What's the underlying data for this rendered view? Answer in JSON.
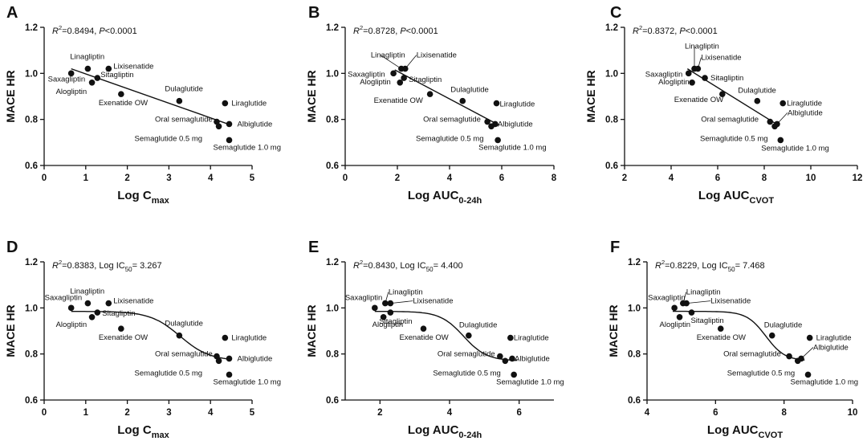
{
  "figure_title": "",
  "chart_data": [
    {
      "panel": "A",
      "type": "scatter",
      "fit": "linear",
      "stat_r2": "0.8494",
      "stat_tail": "P<0.0001",
      "xlabel_main": "Log C",
      "xlabel_sub": "max",
      "ylabel": "MACE HR",
      "xlim": [
        0,
        5
      ],
      "xticks": [
        0,
        1,
        2,
        3,
        4,
        5
      ],
      "ylim": [
        0.6,
        1.2
      ],
      "yticks": [
        0.6,
        0.8,
        1.0,
        1.2
      ],
      "fit_params": {
        "x0": 0.65,
        "y0": 1.02,
        "x1": 4.5,
        "y1": 0.775
      },
      "points": [
        {
          "name": "Linagliptin",
          "x": 1.05,
          "y": 1.02
        },
        {
          "name": "Lixisenatide",
          "x": 1.55,
          "y": 1.02
        },
        {
          "name": "Saxagliptin",
          "x": 0.65,
          "y": 1.0
        },
        {
          "name": "Sitagliptin",
          "x": 1.28,
          "y": 0.98
        },
        {
          "name": "Alogliptin",
          "x": 1.15,
          "y": 0.96
        },
        {
          "name": "Exenatide OW",
          "x": 1.85,
          "y": 0.91
        },
        {
          "name": "Dulaglutide",
          "x": 3.25,
          "y": 0.88
        },
        {
          "name": "Liraglutide",
          "x": 4.35,
          "y": 0.87
        },
        {
          "name": "Oral semaglutide",
          "x": 4.15,
          "y": 0.79
        },
        {
          "name": "Albiglutide",
          "x": 4.45,
          "y": 0.78
        },
        {
          "name": "Semaglutide 0.5 mg",
          "x": 4.2,
          "y": 0.77
        },
        {
          "name": "Semaglutide 1.0 mg",
          "x": 4.45,
          "y": 0.71
        }
      ]
    },
    {
      "panel": "B",
      "type": "scatter",
      "fit": "linear",
      "stat_r2": "0.8728",
      "stat_tail": "P<0.0001",
      "xlabel_main": "Log AUC",
      "xlabel_sub": "0-24h",
      "ylabel": "MACE HR",
      "xlim": [
        0,
        8
      ],
      "xticks": [
        0,
        2,
        4,
        6,
        8
      ],
      "ylim": [
        0.6,
        1.2
      ],
      "yticks": [
        0.6,
        0.8,
        1.0,
        1.2
      ],
      "fit_params": {
        "x0": 1.9,
        "y0": 1.015,
        "x1": 5.9,
        "y1": 0.775
      },
      "points": [
        {
          "name": "Linagliptin",
          "x": 2.15,
          "y": 1.02
        },
        {
          "name": "Lixisenatide",
          "x": 2.3,
          "y": 1.02
        },
        {
          "name": "Saxagliptin",
          "x": 1.85,
          "y": 1.0
        },
        {
          "name": "Sitagliptin",
          "x": 2.25,
          "y": 0.98
        },
        {
          "name": "Alogliptin",
          "x": 2.1,
          "y": 0.96
        },
        {
          "name": "Exenatide OW",
          "x": 3.25,
          "y": 0.91
        },
        {
          "name": "Dulaglutide",
          "x": 4.5,
          "y": 0.88
        },
        {
          "name": "Liraglutide",
          "x": 5.8,
          "y": 0.87
        },
        {
          "name": "Oral semaglutide",
          "x": 5.45,
          "y": 0.79
        },
        {
          "name": "Albiglutide",
          "x": 5.75,
          "y": 0.78
        },
        {
          "name": "Semaglutide 0.5 mg",
          "x": 5.6,
          "y": 0.77
        },
        {
          "name": "Semaglutide 1.0 mg",
          "x": 5.85,
          "y": 0.71
        }
      ]
    },
    {
      "panel": "C",
      "type": "scatter",
      "fit": "linear",
      "stat_r2": "0.8372",
      "stat_tail": "P<0.0001",
      "xlabel_main": "Log AUC",
      "xlabel_sub": "CVOT",
      "ylabel": "MACE HR",
      "xlim": [
        2,
        12
      ],
      "xticks": [
        2,
        4,
        6,
        8,
        10,
        12
      ],
      "ylim": [
        0.6,
        1.2
      ],
      "yticks": [
        0.6,
        0.8,
        1.0,
        1.2
      ],
      "fit_params": {
        "x0": 4.7,
        "y0": 1.02,
        "x1": 8.6,
        "y1": 0.775
      },
      "points": [
        {
          "name": "Linagliptin",
          "x": 5.0,
          "y": 1.02
        },
        {
          "name": "Lixisenatide",
          "x": 5.15,
          "y": 1.02
        },
        {
          "name": "Saxagliptin",
          "x": 4.75,
          "y": 1.0
        },
        {
          "name": "Sitagliptin",
          "x": 5.45,
          "y": 0.98
        },
        {
          "name": "Alogliptin",
          "x": 4.9,
          "y": 0.96
        },
        {
          "name": "Exenatide OW",
          "x": 6.2,
          "y": 0.91
        },
        {
          "name": "Dulaglutide",
          "x": 7.7,
          "y": 0.88
        },
        {
          "name": "Liraglutide",
          "x": 8.8,
          "y": 0.87
        },
        {
          "name": "Oral semaglutide",
          "x": 8.25,
          "y": 0.79
        },
        {
          "name": "Albiglutide",
          "x": 8.55,
          "y": 0.78
        },
        {
          "name": "Semaglutide 0.5 mg",
          "x": 8.45,
          "y": 0.77
        },
        {
          "name": "Semaglutide 1.0 mg",
          "x": 8.7,
          "y": 0.71
        }
      ]
    },
    {
      "panel": "D",
      "type": "scatter",
      "fit": "sigmoid",
      "stat_r2": "0.8383",
      "stat_tail": "Log IC",
      "stat_sub": "50",
      "stat_value": "= 3.267",
      "xlabel_main": "Log C",
      "xlabel_sub": "max",
      "ylabel": "MACE HR",
      "xlim": [
        0,
        5
      ],
      "xticks": [
        0,
        1,
        2,
        3,
        4,
        5
      ],
      "ylim": [
        0.6,
        1.2
      ],
      "yticks": [
        0.6,
        0.8,
        1.0,
        1.2
      ],
      "fit_params": {
        "top": 0.985,
        "bottom": 0.77,
        "ic50": 3.267,
        "slope": 1.4,
        "xstart": 0.65,
        "xend": 4.5
      },
      "points": [
        {
          "name": "Linagliptin",
          "x": 1.05,
          "y": 1.02
        },
        {
          "name": "Lixisenatide",
          "x": 1.55,
          "y": 1.02
        },
        {
          "name": "Saxagliptin",
          "x": 0.65,
          "y": 1.0
        },
        {
          "name": "Sitagliptin",
          "x": 1.28,
          "y": 0.98
        },
        {
          "name": "Alogliptin",
          "x": 1.15,
          "y": 0.96
        },
        {
          "name": "Exenatide OW",
          "x": 1.85,
          "y": 0.91
        },
        {
          "name": "Dulaglutide",
          "x": 3.25,
          "y": 0.88
        },
        {
          "name": "Liraglutide",
          "x": 4.35,
          "y": 0.87
        },
        {
          "name": "Oral semaglutide",
          "x": 4.15,
          "y": 0.79
        },
        {
          "name": "Albiglutide",
          "x": 4.45,
          "y": 0.78
        },
        {
          "name": "Semaglutide 0.5 mg",
          "x": 4.2,
          "y": 0.77
        },
        {
          "name": "Semaglutide 1.0 mg",
          "x": 4.45,
          "y": 0.71
        }
      ]
    },
    {
      "panel": "E",
      "type": "scatter",
      "fit": "sigmoid",
      "stat_r2": "0.8430",
      "stat_tail": "Log IC",
      "stat_sub": "50",
      "stat_value": "= 4.400",
      "xlabel_main": "Log AUC",
      "xlabel_sub": "0-24h",
      "ylabel": "MACE HR",
      "xlim": [
        1,
        7
      ],
      "xticks": [
        2,
        4,
        6
      ],
      "ylim": [
        0.6,
        1.2
      ],
      "yticks": [
        0.6,
        0.8,
        1.0,
        1.2
      ],
      "fit_params": {
        "top": 0.985,
        "bottom": 0.77,
        "ic50": 4.4,
        "slope": 1.5,
        "xstart": 1.85,
        "xend": 5.95
      },
      "points": [
        {
          "name": "Linagliptin",
          "x": 2.15,
          "y": 1.02
        },
        {
          "name": "Lixisenatide",
          "x": 2.3,
          "y": 1.02
        },
        {
          "name": "Saxagliptin",
          "x": 1.85,
          "y": 1.0
        },
        {
          "name": "Sitagliptin",
          "x": 2.3,
          "y": 0.98
        },
        {
          "name": "Alogliptin",
          "x": 2.1,
          "y": 0.96
        },
        {
          "name": "Exenatide OW",
          "x": 3.25,
          "y": 0.91
        },
        {
          "name": "Dulaglutide",
          "x": 4.55,
          "y": 0.88
        },
        {
          "name": "Liraglutide",
          "x": 5.75,
          "y": 0.87
        },
        {
          "name": "Oral semaglutide",
          "x": 5.45,
          "y": 0.79
        },
        {
          "name": "Albiglutide",
          "x": 5.8,
          "y": 0.78
        },
        {
          "name": "Semaglutide 0.5 mg",
          "x": 5.6,
          "y": 0.77
        },
        {
          "name": "Semaglutide 1.0 mg",
          "x": 5.85,
          "y": 0.71
        }
      ]
    },
    {
      "panel": "F",
      "type": "scatter",
      "fit": "sigmoid",
      "stat_r2": "0.8229",
      "stat_tail": "Log IC",
      "stat_sub": "50",
      "stat_value": "= 7.468",
      "xlabel_main": "Log AUC",
      "xlabel_sub": "CVOT",
      "ylabel": "MACE HR",
      "xlim": [
        4,
        10
      ],
      "xticks": [
        4,
        6,
        8,
        10
      ],
      "ylim": [
        0.6,
        1.2
      ],
      "yticks": [
        0.6,
        0.8,
        1.0,
        1.2
      ],
      "fit_params": {
        "top": 0.985,
        "bottom": 0.77,
        "ic50": 7.468,
        "slope": 1.8,
        "xstart": 4.75,
        "xend": 8.6
      },
      "points": [
        {
          "name": "Linagliptin",
          "x": 5.05,
          "y": 1.02
        },
        {
          "name": "Lixisenatide",
          "x": 5.15,
          "y": 1.02
        },
        {
          "name": "Saxagliptin",
          "x": 4.8,
          "y": 1.0
        },
        {
          "name": "Sitagliptin",
          "x": 5.3,
          "y": 0.98
        },
        {
          "name": "Alogliptin",
          "x": 4.95,
          "y": 0.96
        },
        {
          "name": "Exenatide OW",
          "x": 6.15,
          "y": 0.91
        },
        {
          "name": "Dulaglutide",
          "x": 7.65,
          "y": 0.88
        },
        {
          "name": "Liraglutide",
          "x": 8.75,
          "y": 0.87
        },
        {
          "name": "Oral semaglutide",
          "x": 8.15,
          "y": 0.79
        },
        {
          "name": "Albiglutide",
          "x": 8.5,
          "y": 0.78
        },
        {
          "name": "Semaglutide 0.5 mg",
          "x": 8.4,
          "y": 0.77
        },
        {
          "name": "Semaglutide 1.0 mg",
          "x": 8.7,
          "y": 0.71
        }
      ]
    }
  ]
}
